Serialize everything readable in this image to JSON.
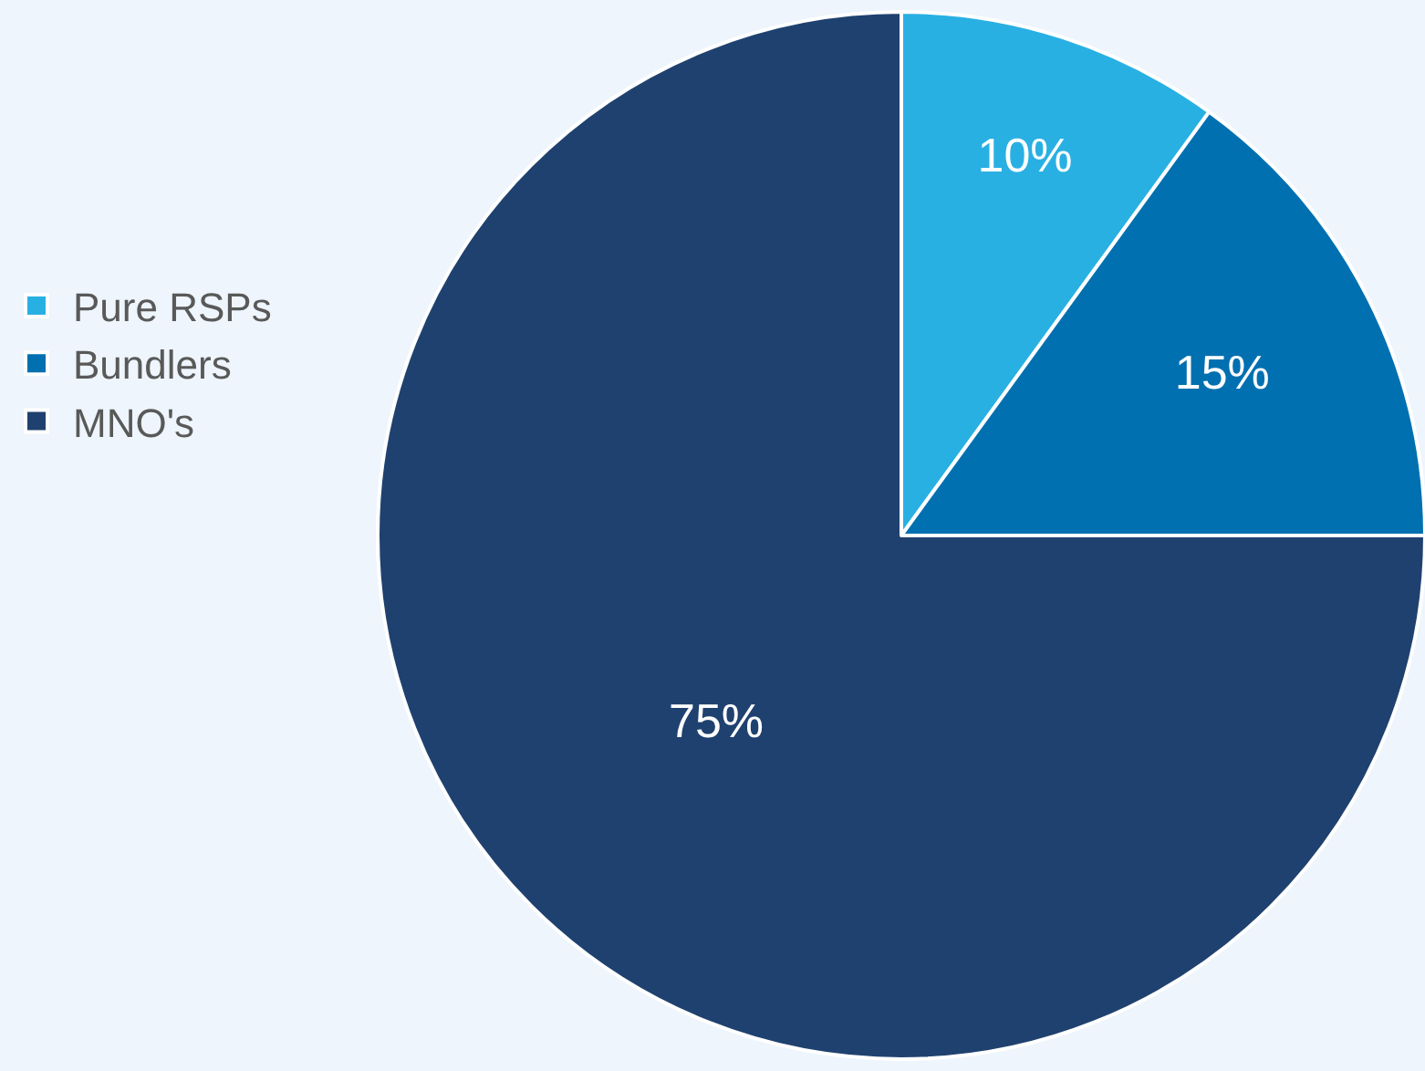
{
  "chart_data": {
    "type": "pie",
    "categories": [
      "Pure RSPs",
      "Bundlers",
      "MNO's"
    ],
    "values": [
      10,
      15,
      75
    ],
    "colors": [
      "#29b0e3",
      "#0070b0",
      "#1f416f"
    ],
    "value_labels": [
      "10%",
      "15%",
      "75%"
    ],
    "legend": "left"
  }
}
